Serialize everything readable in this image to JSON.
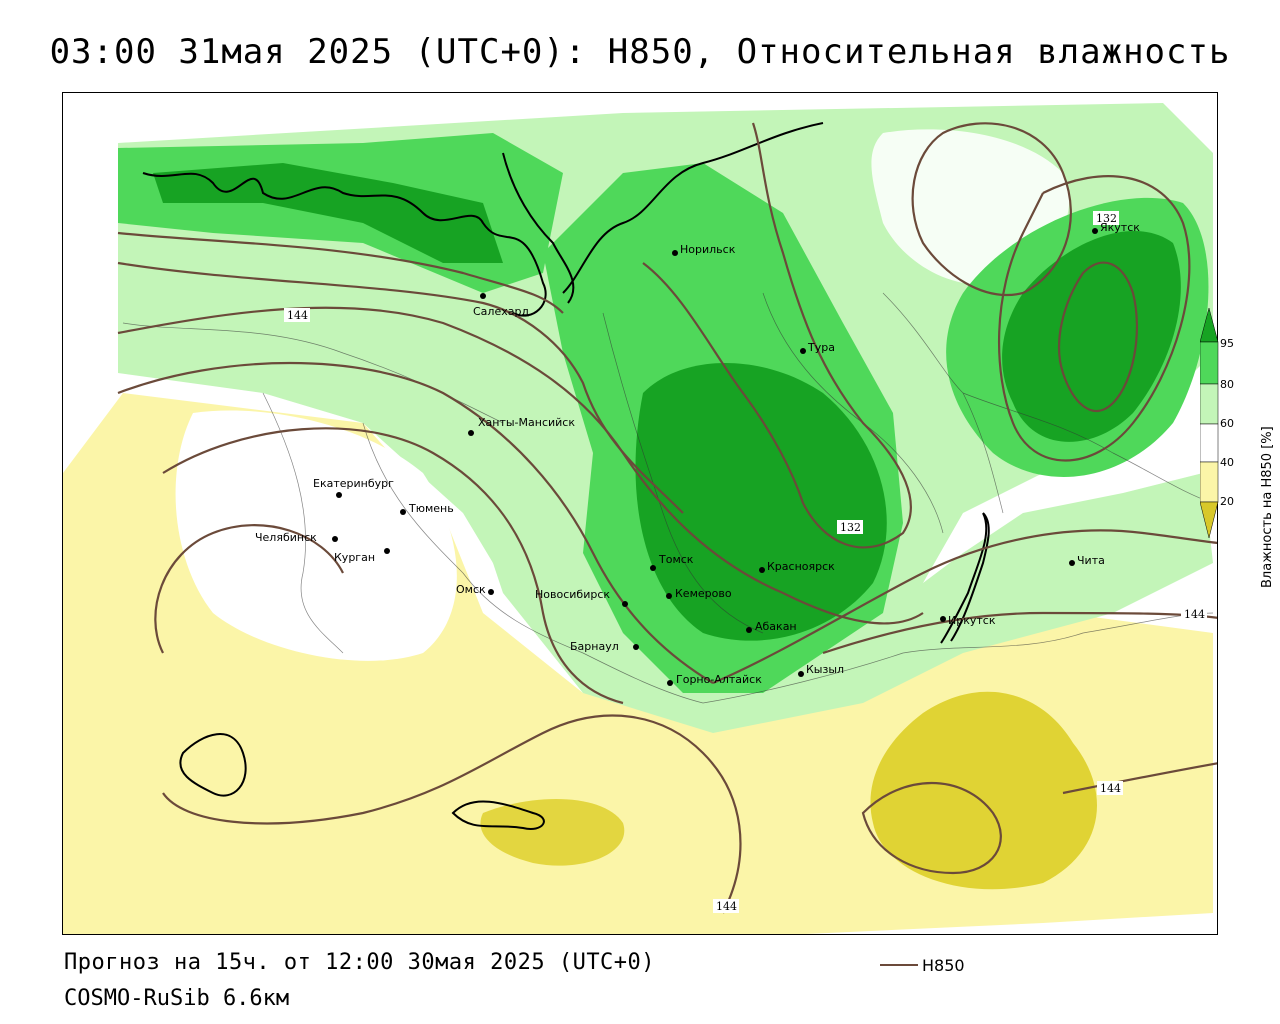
{
  "header": {
    "title": "03:00 31мая 2025 (UTC+0): H850, Относительная влажность"
  },
  "footer": {
    "forecast": "Прогноз на 15ч. от 12:00 30мая 2025 (UTC+0)",
    "model": "COSMO-RuSib 6.6км"
  },
  "legend": {
    "line_label": "H850",
    "line_color": "#6b4a3a"
  },
  "colorbar": {
    "title": "Влажность на H850 [%]",
    "ticks": [
      "20",
      "40",
      "60",
      "80",
      "95"
    ],
    "colors": {
      "very_dry": "#d8c82a",
      "dry": "#fbf5a8",
      "neutral": "#ffffff",
      "moist": "#c3f5b8",
      "wet": "#4fd85a",
      "very_wet": "#17a323"
    }
  },
  "isohypse_labels": [
    "144",
    "132",
    "132",
    "144",
    "144",
    "144"
  ],
  "cities": [
    {
      "name": "Норильск"
    },
    {
      "name": "Якутск"
    },
    {
      "name": "Салехард"
    },
    {
      "name": "Тура"
    },
    {
      "name": "Ханты-Мансийск"
    },
    {
      "name": "Екатеринбург"
    },
    {
      "name": "Тюмень"
    },
    {
      "name": "Челябинск"
    },
    {
      "name": "Курган"
    },
    {
      "name": "Омск"
    },
    {
      "name": "Новосибирск"
    },
    {
      "name": "Томск"
    },
    {
      "name": "Кемерово"
    },
    {
      "name": "Красноярск"
    },
    {
      "name": "Абакан"
    },
    {
      "name": "Барнаул"
    },
    {
      "name": "Горно-Алтайск"
    },
    {
      "name": "Кызыл"
    },
    {
      "name": "Иркутск"
    },
    {
      "name": "Чита"
    }
  ]
}
